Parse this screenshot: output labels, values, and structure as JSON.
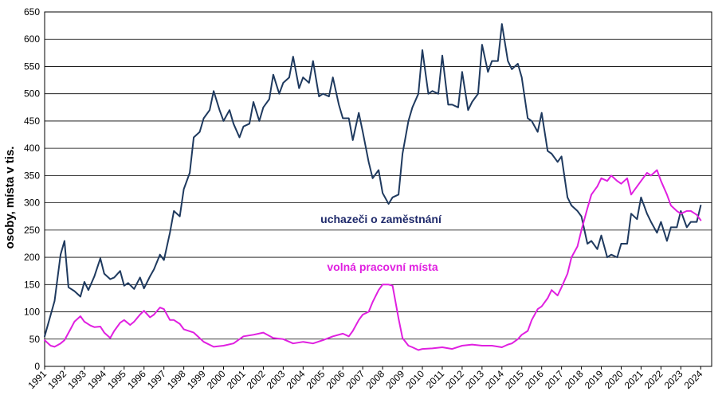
{
  "chart_data": {
    "type": "line",
    "title": "",
    "ylabel": "osoby, místa v tis.",
    "xlabel": "",
    "ylim": [
      0,
      650
    ],
    "y_ticks": [
      "0",
      "50",
      "100",
      "150",
      "200",
      "250",
      "300",
      "350",
      "400",
      "450",
      "500",
      "550",
      "600",
      "650"
    ],
    "x_ticks": [
      "1991",
      "1992",
      "1993",
      "1994",
      "1995",
      "1996",
      "1997",
      "1998",
      "1999",
      "2000",
      "2001",
      "2002",
      "2003",
      "2004",
      "2005",
      "2006",
      "2007",
      "2008",
      "2009",
      "2010",
      "2011",
      "2012",
      "2013",
      "2014",
      "2015",
      "2016",
      "2017",
      "2018",
      "2019",
      "2020",
      "2021",
      "2022",
      "2023",
      "2024"
    ],
    "grid": "horizontal",
    "series": [
      {
        "name": "uchazeči o zaměstnání",
        "color": "#1f3a5f",
        "x": [
          1991.0,
          1991.5,
          1991.8,
          1992.0,
          1992.2,
          1992.5,
          1992.8,
          1993.0,
          1993.2,
          1993.5,
          1993.8,
          1994.0,
          1994.3,
          1994.5,
          1994.8,
          1995.0,
          1995.2,
          1995.5,
          1995.8,
          1996.0,
          1996.3,
          1996.5,
          1996.8,
          1997.0,
          1997.3,
          1997.5,
          1997.8,
          1998.0,
          1998.3,
          1998.5,
          1998.8,
          1999.0,
          1999.3,
          1999.5,
          1999.8,
          2000.0,
          2000.3,
          2000.5,
          2000.8,
          2001.0,
          2001.3,
          2001.5,
          2001.8,
          2002.0,
          2002.3,
          2002.5,
          2002.8,
          2003.0,
          2003.3,
          2003.5,
          2003.8,
          2004.0,
          2004.3,
          2004.5,
          2004.8,
          2005.0,
          2005.3,
          2005.5,
          2005.8,
          2006.0,
          2006.3,
          2006.5,
          2006.8,
          2007.0,
          2007.3,
          2007.5,
          2007.8,
          2008.0,
          2008.3,
          2008.5,
          2008.8,
          2009.0,
          2009.3,
          2009.5,
          2009.8,
          2010.0,
          2010.3,
          2010.5,
          2010.8,
          2011.0,
          2011.3,
          2011.5,
          2011.8,
          2012.0,
          2012.3,
          2012.5,
          2012.8,
          2013.0,
          2013.3,
          2013.5,
          2013.8,
          2014.0,
          2014.3,
          2014.5,
          2014.8,
          2015.0,
          2015.3,
          2015.5,
          2015.8,
          2016.0,
          2016.3,
          2016.5,
          2016.8,
          2017.0,
          2017.3,
          2017.5,
          2017.8,
          2018.0,
          2018.3,
          2018.5,
          2018.8,
          2019.0,
          2019.3,
          2019.5,
          2019.8,
          2020.0,
          2020.3,
          2020.5,
          2020.8,
          2021.0,
          2021.3,
          2021.5,
          2021.8,
          2022.0,
          2022.3,
          2022.5,
          2022.8,
          2023.0,
          2023.3,
          2023.5,
          2023.8,
          2024.0
        ],
        "values": [
          55,
          120,
          205,
          230,
          145,
          138,
          128,
          155,
          140,
          165,
          198,
          170,
          160,
          163,
          175,
          148,
          153,
          142,
          163,
          143,
          165,
          178,
          205,
          195,
          245,
          285,
          275,
          325,
          355,
          420,
          430,
          455,
          470,
          505,
          470,
          450,
          470,
          445,
          420,
          440,
          445,
          485,
          450,
          475,
          490,
          535,
          500,
          520,
          530,
          568,
          510,
          530,
          520,
          560,
          495,
          500,
          495,
          530,
          480,
          455,
          455,
          415,
          465,
          430,
          375,
          345,
          360,
          318,
          298,
          310,
          315,
          390,
          450,
          475,
          500,
          580,
          500,
          505,
          500,
          570,
          480,
          480,
          475,
          540,
          470,
          485,
          500,
          590,
          540,
          560,
          560,
          628,
          560,
          545,
          555,
          530,
          455,
          450,
          430,
          465,
          395,
          390,
          375,
          385,
          310,
          295,
          285,
          275,
          225,
          230,
          215,
          240,
          200,
          205,
          200,
          225,
          225,
          280,
          270,
          310,
          280,
          265,
          245,
          265,
          230,
          255,
          255,
          285,
          255,
          265,
          265,
          295
        ]
      },
      {
        "name": "volná pracovní místa",
        "color": "#e020e0",
        "x": [
          1991.0,
          1991.3,
          1991.5,
          1991.8,
          1992.0,
          1992.3,
          1992.5,
          1992.8,
          1993.0,
          1993.3,
          1993.5,
          1993.8,
          1994.0,
          1994.3,
          1994.5,
          1994.8,
          1995.0,
          1995.3,
          1995.5,
          1995.8,
          1996.0,
          1996.3,
          1996.5,
          1996.8,
          1997.0,
          1997.3,
          1997.5,
          1997.8,
          1998.0,
          1998.5,
          1999.0,
          1999.5,
          2000.0,
          2000.5,
          2001.0,
          2001.5,
          2002.0,
          2002.5,
          2003.0,
          2003.5,
          2004.0,
          2004.5,
          2005.0,
          2005.5,
          2006.0,
          2006.3,
          2006.5,
          2006.8,
          2007.0,
          2007.3,
          2007.5,
          2007.8,
          2008.0,
          2008.3,
          2008.5,
          2008.8,
          2009.0,
          2009.3,
          2009.5,
          2009.8,
          2010.0,
          2010.5,
          2011.0,
          2011.5,
          2012.0,
          2012.5,
          2013.0,
          2013.5,
          2014.0,
          2014.3,
          2014.5,
          2014.8,
          2015.0,
          2015.3,
          2015.5,
          2015.8,
          2016.0,
          2016.3,
          2016.5,
          2016.8,
          2017.0,
          2017.3,
          2017.5,
          2017.8,
          2018.0,
          2018.3,
          2018.5,
          2018.8,
          2019.0,
          2019.3,
          2019.5,
          2019.8,
          2020.0,
          2020.3,
          2020.5,
          2020.8,
          2021.0,
          2021.3,
          2021.5,
          2021.8,
          2022.0,
          2022.3,
          2022.5,
          2022.8,
          2023.0,
          2023.3,
          2023.5,
          2023.8,
          2024.0
        ],
        "values": [
          48,
          38,
          36,
          42,
          48,
          68,
          82,
          92,
          82,
          75,
          72,
          73,
          62,
          52,
          65,
          80,
          85,
          76,
          82,
          95,
          102,
          90,
          95,
          108,
          105,
          85,
          85,
          78,
          68,
          62,
          45,
          36,
          38,
          42,
          55,
          58,
          62,
          52,
          50,
          42,
          45,
          42,
          48,
          55,
          60,
          55,
          65,
          85,
          95,
          100,
          118,
          140,
          150,
          150,
          148,
          88,
          52,
          38,
          35,
          30,
          32,
          33,
          35,
          32,
          38,
          40,
          38,
          38,
          35,
          40,
          42,
          50,
          58,
          65,
          85,
          105,
          110,
          125,
          140,
          130,
          145,
          170,
          200,
          220,
          250,
          290,
          315,
          330,
          345,
          340,
          350,
          340,
          335,
          345,
          315,
          330,
          340,
          355,
          350,
          360,
          340,
          315,
          295,
          285,
          280,
          285,
          285,
          278,
          268
        ]
      }
    ],
    "annotations": [
      {
        "text": "uchazeči o zaměstnání",
        "series": 0,
        "color": "#1f2a6b"
      },
      {
        "text": "volná pracovní místa",
        "series": 1,
        "color": "#e020e0"
      }
    ]
  }
}
